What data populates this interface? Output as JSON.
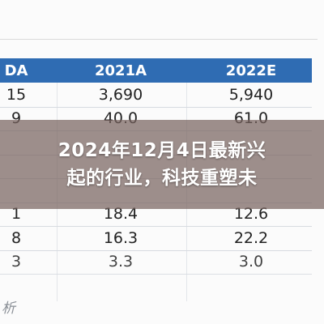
{
  "table": {
    "header": [
      "DA",
      "2021A",
      "2022E"
    ],
    "rows": [
      [
        "15",
        "3,690",
        "5,940"
      ],
      [
        "9",
        "40.0",
        "61.0"
      ],
      [
        "1",
        "18.4",
        "12.6"
      ],
      [
        "8",
        "16.3",
        "22.2"
      ],
      [
        "3",
        "3.3",
        "3.0"
      ]
    ]
  },
  "overlay": {
    "title_lines": [
      "2024年12月4日最新兴",
      "起的行业，科技重塑未"
    ]
  },
  "footer": {
    "text": "析"
  }
}
